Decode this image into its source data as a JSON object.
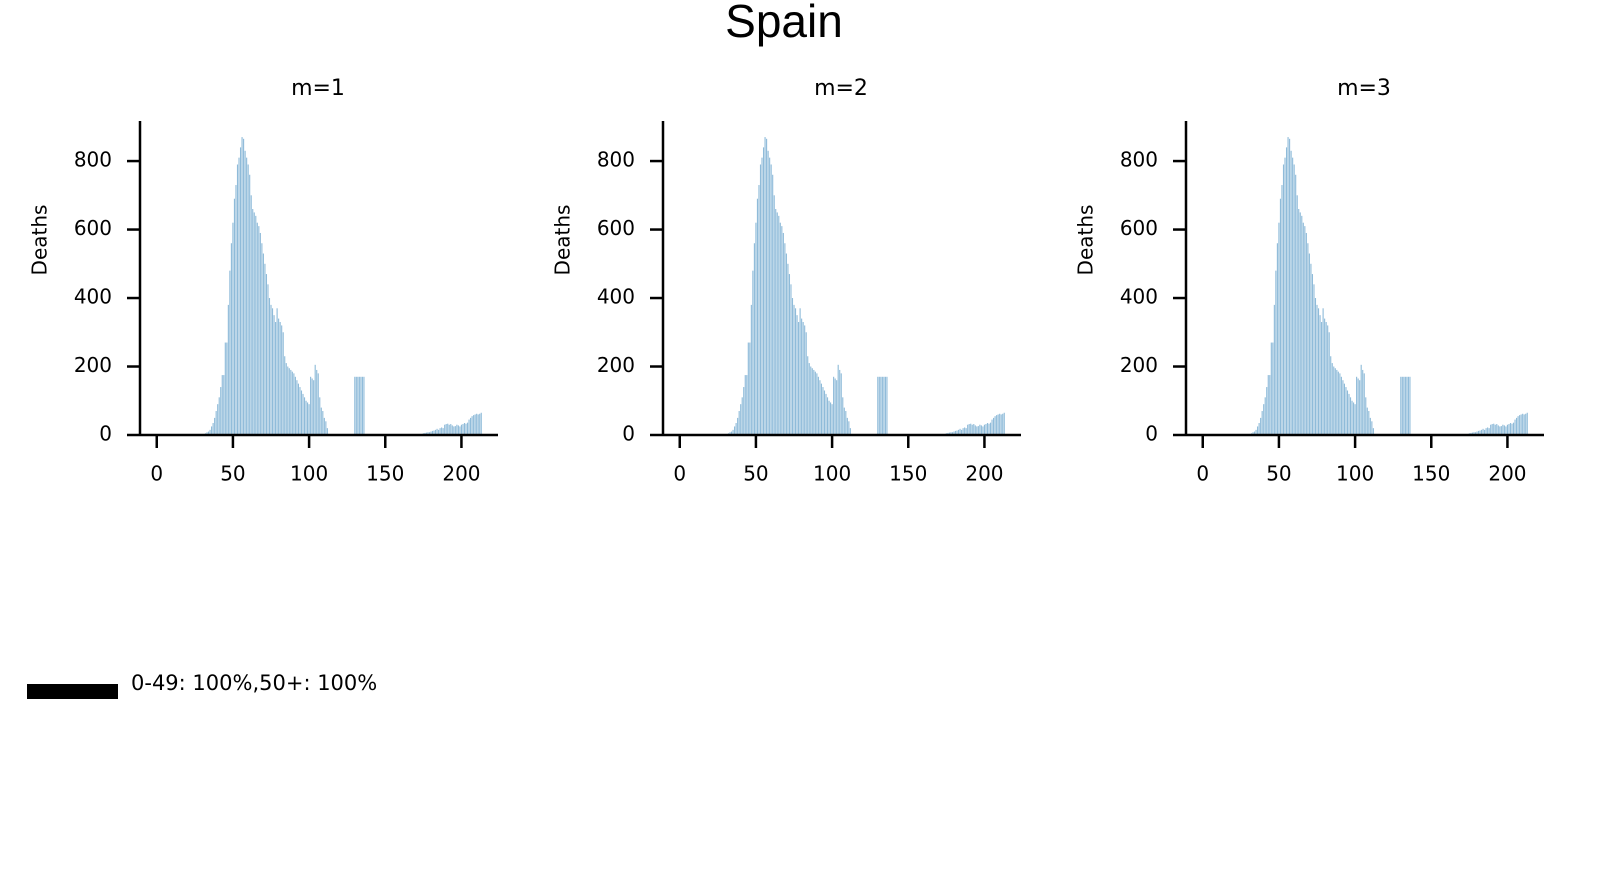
{
  "title": "Spain",
  "legend": [
    {
      "name": "0-49: 100%,50+: 100%",
      "color": "#000000"
    }
  ],
  "chart_data": [
    {
      "type": "bar",
      "title": "m=1",
      "y_label": "Deaths",
      "color": "#8fbbd9",
      "xlim": [
        -11,
        224
      ],
      "ylim": [
        0,
        917
      ],
      "xticks": [
        0,
        50,
        100,
        150,
        200
      ],
      "yticks": [
        0,
        200,
        400,
        600,
        800
      ],
      "x": [
        30,
        31,
        32,
        33,
        34,
        35,
        36,
        37,
        38,
        39,
        40,
        41,
        42,
        43,
        44,
        45,
        46,
        47,
        48,
        49,
        50,
        51,
        52,
        53,
        54,
        55,
        56,
        57,
        58,
        59,
        60,
        61,
        62,
        63,
        64,
        65,
        66,
        67,
        68,
        69,
        70,
        71,
        72,
        73,
        74,
        75,
        76,
        77,
        78,
        79,
        80,
        81,
        82,
        83,
        84,
        85,
        86,
        87,
        88,
        89,
        90,
        91,
        92,
        93,
        94,
        95,
        96,
        97,
        98,
        99,
        100,
        101,
        102,
        103,
        104,
        105,
        106,
        107,
        108,
        109,
        110,
        111,
        112,
        130,
        131,
        132,
        133,
        134,
        135,
        136,
        145,
        146,
        147,
        148,
        175,
        176,
        177,
        178,
        179,
        180,
        181,
        182,
        183,
        184,
        185,
        186,
        187,
        188,
        189,
        190,
        191,
        192,
        193,
        194,
        195,
        196,
        197,
        198,
        199,
        200,
        201,
        202,
        203,
        204,
        205,
        206,
        207,
        208,
        209,
        210,
        211,
        212,
        213
      ],
      "values": [
        2,
        3,
        5,
        8,
        10,
        15,
        25,
        35,
        50,
        70,
        90,
        110,
        140,
        175,
        175,
        270,
        270,
        380,
        480,
        560,
        620,
        690,
        730,
        790,
        810,
        840,
        870,
        865,
        830,
        810,
        790,
        760,
        700,
        660,
        650,
        640,
        620,
        610,
        590,
        560,
        530,
        500,
        470,
        440,
        400,
        380,
        370,
        350,
        330,
        370,
        340,
        330,
        320,
        300,
        230,
        210,
        200,
        195,
        190,
        185,
        180,
        170,
        160,
        150,
        140,
        130,
        120,
        110,
        100,
        95,
        90,
        170,
        165,
        160,
        205,
        190,
        180,
        110,
        80,
        70,
        50,
        40,
        20,
        170,
        170,
        170,
        170,
        170,
        170,
        170,
        2,
        2,
        3,
        2,
        5,
        6,
        7,
        8,
        8,
        10,
        12,
        13,
        15,
        18,
        15,
        20,
        22,
        20,
        30,
        32,
        33,
        30,
        32,
        28,
        25,
        26,
        30,
        28,
        25,
        30,
        32,
        35,
        33,
        36,
        45,
        50,
        55,
        58,
        60,
        62,
        60,
        62,
        65
      ]
    },
    {
      "type": "bar",
      "title": "m=2",
      "y_label": "Deaths",
      "color": "#8fbbd9",
      "xlim": [
        -11,
        224
      ],
      "ylim": [
        0,
        917
      ],
      "xticks": [
        0,
        50,
        100,
        150,
        200
      ],
      "yticks": [
        0,
        200,
        400,
        600,
        800
      ],
      "x": [
        30,
        31,
        32,
        33,
        34,
        35,
        36,
        37,
        38,
        39,
        40,
        41,
        42,
        43,
        44,
        45,
        46,
        47,
        48,
        49,
        50,
        51,
        52,
        53,
        54,
        55,
        56,
        57,
        58,
        59,
        60,
        61,
        62,
        63,
        64,
        65,
        66,
        67,
        68,
        69,
        70,
        71,
        72,
        73,
        74,
        75,
        76,
        77,
        78,
        79,
        80,
        81,
        82,
        83,
        84,
        85,
        86,
        87,
        88,
        89,
        90,
        91,
        92,
        93,
        94,
        95,
        96,
        97,
        98,
        99,
        100,
        101,
        102,
        103,
        104,
        105,
        106,
        107,
        108,
        109,
        110,
        111,
        112,
        130,
        131,
        132,
        133,
        134,
        135,
        136,
        145,
        146,
        147,
        148,
        175,
        176,
        177,
        178,
        179,
        180,
        181,
        182,
        183,
        184,
        185,
        186,
        187,
        188,
        189,
        190,
        191,
        192,
        193,
        194,
        195,
        196,
        197,
        198,
        199,
        200,
        201,
        202,
        203,
        204,
        205,
        206,
        207,
        208,
        209,
        210,
        211,
        212,
        213
      ],
      "values": [
        2,
        3,
        5,
        8,
        10,
        15,
        25,
        35,
        50,
        70,
        90,
        110,
        140,
        175,
        175,
        270,
        270,
        380,
        480,
        560,
        620,
        690,
        730,
        790,
        810,
        840,
        870,
        865,
        830,
        810,
        790,
        760,
        700,
        660,
        650,
        640,
        620,
        610,
        590,
        560,
        530,
        500,
        470,
        440,
        400,
        380,
        370,
        350,
        330,
        370,
        340,
        330,
        320,
        300,
        230,
        210,
        200,
        195,
        190,
        185,
        180,
        170,
        160,
        150,
        140,
        130,
        120,
        110,
        100,
        95,
        90,
        170,
        165,
        160,
        205,
        190,
        180,
        110,
        80,
        70,
        50,
        40,
        20,
        170,
        170,
        170,
        170,
        170,
        170,
        170,
        2,
        2,
        3,
        2,
        5,
        6,
        7,
        8,
        8,
        10,
        12,
        13,
        15,
        18,
        15,
        20,
        22,
        20,
        30,
        32,
        33,
        30,
        32,
        28,
        25,
        26,
        30,
        28,
        25,
        30,
        32,
        35,
        33,
        36,
        45,
        50,
        55,
        58,
        60,
        62,
        60,
        62,
        65
      ]
    },
    {
      "type": "bar",
      "title": "m=3",
      "y_label": "Deaths",
      "color": "#8fbbd9",
      "xlim": [
        -11,
        224
      ],
      "ylim": [
        0,
        917
      ],
      "xticks": [
        0,
        50,
        100,
        150,
        200
      ],
      "yticks": [
        0,
        200,
        400,
        600,
        800
      ],
      "x": [
        30,
        31,
        32,
        33,
        34,
        35,
        36,
        37,
        38,
        39,
        40,
        41,
        42,
        43,
        44,
        45,
        46,
        47,
        48,
        49,
        50,
        51,
        52,
        53,
        54,
        55,
        56,
        57,
        58,
        59,
        60,
        61,
        62,
        63,
        64,
        65,
        66,
        67,
        68,
        69,
        70,
        71,
        72,
        73,
        74,
        75,
        76,
        77,
        78,
        79,
        80,
        81,
        82,
        83,
        84,
        85,
        86,
        87,
        88,
        89,
        90,
        91,
        92,
        93,
        94,
        95,
        96,
        97,
        98,
        99,
        100,
        101,
        102,
        103,
        104,
        105,
        106,
        107,
        108,
        109,
        110,
        111,
        112,
        130,
        131,
        132,
        133,
        134,
        135,
        136,
        145,
        146,
        147,
        148,
        175,
        176,
        177,
        178,
        179,
        180,
        181,
        182,
        183,
        184,
        185,
        186,
        187,
        188,
        189,
        190,
        191,
        192,
        193,
        194,
        195,
        196,
        197,
        198,
        199,
        200,
        201,
        202,
        203,
        204,
        205,
        206,
        207,
        208,
        209,
        210,
        211,
        212,
        213
      ],
      "values": [
        2,
        3,
        5,
        8,
        10,
        15,
        25,
        35,
        50,
        70,
        90,
        110,
        140,
        175,
        175,
        270,
        270,
        380,
        480,
        560,
        620,
        690,
        730,
        790,
        810,
        840,
        870,
        865,
        830,
        810,
        790,
        760,
        700,
        660,
        650,
        640,
        620,
        610,
        590,
        560,
        530,
        500,
        470,
        440,
        400,
        380,
        370,
        350,
        330,
        370,
        340,
        330,
        320,
        300,
        230,
        210,
        200,
        195,
        190,
        185,
        180,
        170,
        160,
        150,
        140,
        130,
        120,
        110,
        100,
        95,
        90,
        170,
        165,
        160,
        205,
        190,
        180,
        110,
        80,
        70,
        50,
        40,
        20,
        170,
        170,
        170,
        170,
        170,
        170,
        170,
        2,
        2,
        3,
        2,
        5,
        6,
        7,
        8,
        8,
        10,
        12,
        13,
        15,
        18,
        15,
        20,
        22,
        20,
        30,
        32,
        33,
        30,
        32,
        28,
        25,
        26,
        30,
        28,
        25,
        30,
        32,
        35,
        33,
        36,
        45,
        50,
        55,
        58,
        60,
        62,
        60,
        62,
        65
      ]
    }
  ]
}
